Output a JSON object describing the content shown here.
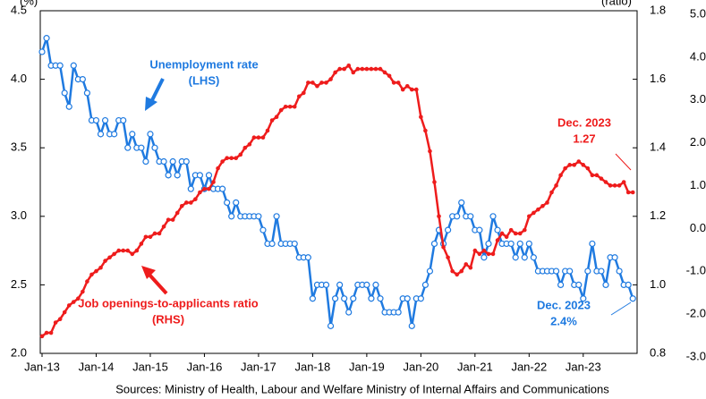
{
  "chart_data": {
    "type": "line",
    "y_label": "(%)",
    "y2_label": "(ratio)",
    "source": "Sources: Ministry of Health, Labour and Welfare  Ministry of Internal Affairs and Communications",
    "categories": [
      "Jan-13",
      null,
      null,
      null,
      null,
      null,
      null,
      null,
      null,
      null,
      null,
      null,
      "Jan-14",
      null,
      null,
      null,
      null,
      null,
      null,
      null,
      null,
      null,
      null,
      null,
      "Jan-15",
      null,
      null,
      null,
      null,
      null,
      null,
      null,
      null,
      null,
      null,
      null,
      "Jan-16",
      null,
      null,
      null,
      null,
      null,
      null,
      null,
      null,
      null,
      null,
      null,
      "Jan-17",
      null,
      null,
      null,
      null,
      null,
      null,
      null,
      null,
      null,
      null,
      null,
      "Jan-18",
      null,
      null,
      null,
      null,
      null,
      null,
      null,
      null,
      null,
      null,
      null,
      "Jan-19",
      null,
      null,
      null,
      null,
      null,
      null,
      null,
      null,
      null,
      null,
      null,
      "Jan-20",
      null,
      null,
      null,
      null,
      null,
      null,
      null,
      null,
      null,
      null,
      null,
      "Jan-21",
      null,
      null,
      null,
      null,
      null,
      null,
      null,
      null,
      null,
      null,
      null,
      "Jan-22",
      null,
      null,
      null,
      null,
      null,
      null,
      null,
      null,
      null,
      null,
      null,
      "Jan-23",
      null,
      null,
      null,
      null,
      null,
      null,
      null,
      null,
      null,
      null,
      null
    ],
    "series": [
      {
        "name": "Unemployment rate",
        "color": "#1f7ae0",
        "axis": "y",
        "values": [
          4.2,
          4.3,
          4.1,
          4.1,
          4.1,
          3.9,
          3.8,
          4.1,
          4.0,
          4.0,
          3.9,
          3.7,
          3.7,
          3.6,
          3.7,
          3.6,
          3.6,
          3.7,
          3.7,
          3.5,
          3.6,
          3.5,
          3.5,
          3.4,
          3.6,
          3.5,
          3.4,
          3.4,
          3.3,
          3.4,
          3.3,
          3.4,
          3.4,
          3.2,
          3.3,
          3.3,
          3.2,
          3.3,
          3.2,
          3.2,
          3.2,
          3.1,
          3.0,
          3.1,
          3.0,
          3.0,
          3.0,
          3.0,
          3.0,
          2.9,
          2.8,
          2.8,
          3.0,
          2.8,
          2.8,
          2.8,
          2.8,
          2.7,
          2.7,
          2.7,
          2.4,
          2.5,
          2.5,
          2.5,
          2.2,
          2.4,
          2.5,
          2.4,
          2.3,
          2.4,
          2.5,
          2.5,
          2.5,
          2.4,
          2.5,
          2.4,
          2.3,
          2.3,
          2.3,
          2.3,
          2.4,
          2.4,
          2.2,
          2.4,
          2.4,
          2.5,
          2.6,
          2.8,
          2.9,
          2.8,
          2.9,
          3.0,
          3.0,
          3.1,
          3.0,
          3.0,
          2.9,
          2.9,
          2.7,
          2.8,
          3.0,
          2.9,
          2.8,
          2.8,
          2.8,
          2.7,
          2.8,
          2.7,
          2.8,
          2.7,
          2.6,
          2.6,
          2.6,
          2.6,
          2.6,
          2.5,
          2.6,
          2.6,
          2.5,
          2.5,
          2.4,
          2.6,
          2.8,
          2.6,
          2.6,
          2.5,
          2.7,
          2.7,
          2.6,
          2.5,
          2.5,
          2.4
        ]
      },
      {
        "name": "Job openings-to-applicants ratio",
        "color": "#ee1c1c",
        "axis": "y2",
        "values": [
          0.85,
          0.86,
          0.86,
          0.89,
          0.9,
          0.92,
          0.94,
          0.95,
          0.96,
          0.98,
          1.01,
          1.03,
          1.04,
          1.05,
          1.07,
          1.08,
          1.09,
          1.1,
          1.1,
          1.1,
          1.09,
          1.1,
          1.12,
          1.14,
          1.14,
          1.15,
          1.15,
          1.17,
          1.19,
          1.19,
          1.21,
          1.23,
          1.24,
          1.24,
          1.25,
          1.27,
          1.28,
          1.28,
          1.3,
          1.34,
          1.36,
          1.37,
          1.37,
          1.37,
          1.38,
          1.4,
          1.41,
          1.43,
          1.43,
          1.43,
          1.45,
          1.48,
          1.49,
          1.51,
          1.52,
          1.52,
          1.52,
          1.55,
          1.56,
          1.59,
          1.59,
          1.58,
          1.59,
          1.59,
          1.6,
          1.62,
          1.63,
          1.63,
          1.64,
          1.62,
          1.63,
          1.63,
          1.63,
          1.63,
          1.63,
          1.63,
          1.62,
          1.61,
          1.59,
          1.59,
          1.57,
          1.58,
          1.57,
          1.57,
          1.49,
          1.45,
          1.39,
          1.3,
          1.2,
          1.11,
          1.08,
          1.04,
          1.03,
          1.04,
          1.06,
          1.05,
          1.1,
          1.09,
          1.1,
          1.09,
          1.09,
          1.13,
          1.15,
          1.14,
          1.16,
          1.15,
          1.15,
          1.16,
          1.2,
          1.21,
          1.22,
          1.23,
          1.24,
          1.27,
          1.29,
          1.32,
          1.34,
          1.35,
          1.35,
          1.36,
          1.35,
          1.34,
          1.32,
          1.32,
          1.31,
          1.3,
          1.29,
          1.29,
          1.29,
          1.3,
          1.27,
          1.27
        ]
      }
    ],
    "ylim": [
      2.0,
      4.5
    ],
    "yticks": [
      {
        "value": 2.0,
        "label": "2.0"
      },
      2.5,
      {
        "value": 3.0,
        "label": "3.0"
      },
      3.5,
      {
        "value": 4.0,
        "label": "4.0"
      },
      4.5
    ],
    "y2lim": [
      0.8,
      1.8
    ],
    "y2ticks": [
      0.8,
      {
        "value": 1.0,
        "label": "1.0"
      },
      1.2,
      1.4,
      1.6,
      1.8
    ],
    "y3lim": [
      -3,
      5
    ],
    "y3ticks": [
      {
        "value": -3,
        "label": "-3.0"
      },
      {
        "value": -2,
        "label": "-2.0"
      },
      {
        "value": -1,
        "label": "-1.0"
      },
      {
        "value": 0,
        "label": "0.0"
      },
      {
        "value": 1,
        "label": "1.0"
      },
      {
        "value": 2,
        "label": "2.0"
      },
      {
        "value": 3,
        "label": "3.0"
      },
      {
        "value": 4,
        "label": "4.0"
      },
      {
        "value": 5,
        "label": "5.0"
      }
    ],
    "annotations": [
      {
        "lines": [
          "Unemployment rate",
          "(LHS)"
        ],
        "color": "#1f7ae0"
      },
      {
        "lines": [
          "Job openings-to-applicants ratio",
          "(RHS)"
        ],
        "color": "#ee1c1c"
      },
      {
        "lines": [
          "Dec. 2023",
          "1.27"
        ],
        "color": "#ee1c1c"
      },
      {
        "lines": [
          "Dec. 2023",
          "2.4%"
        ],
        "color": "#1f7ae0"
      }
    ]
  }
}
